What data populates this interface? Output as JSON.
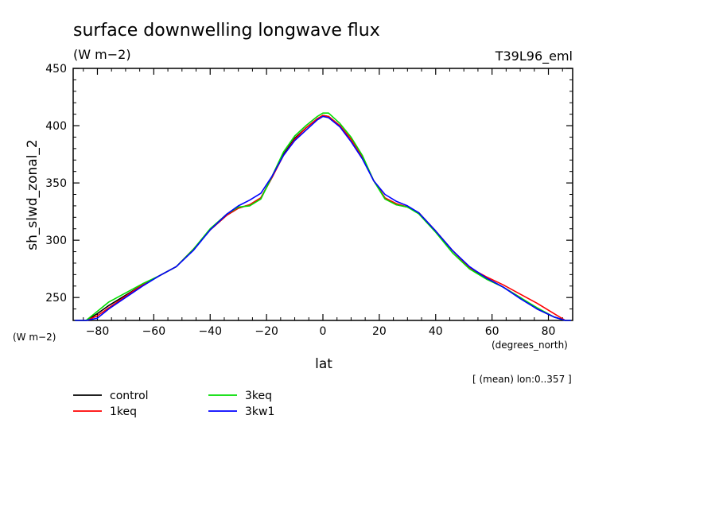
{
  "chart_data": {
    "type": "line",
    "title": "surface downwelling longwave flux",
    "subtitle": "(W m−2)",
    "run_label": "T39L96_eml",
    "ylabel": "sh_slwd_zonal_2",
    "y_units": "(W m−2)",
    "xlabel": "lat",
    "x_units": "(degrees_north)",
    "footnote": "[ (mean) lon:0..357 ]",
    "xlim": [
      -88.6,
      88.6
    ],
    "ylim": [
      230,
      450
    ],
    "x_ticks": [
      -80,
      -60,
      -40,
      -20,
      0,
      20,
      40,
      60,
      80
    ],
    "x_tick_labels": [
      "−80",
      "−60",
      "−40",
      "−20",
      "0",
      "20",
      "40",
      "60",
      "80"
    ],
    "y_ticks": [
      250,
      300,
      350,
      400,
      450
    ],
    "y_tick_labels": [
      "250",
      "300",
      "350",
      "400",
      "450"
    ],
    "grid": false,
    "legend_position": "bottom-left",
    "x": [
      -88,
      -84,
      -80,
      -76,
      -70,
      -64,
      -58,
      -52,
      -46,
      -40,
      -34,
      -30,
      -26,
      -22,
      -18,
      -14,
      -10,
      -6,
      -2,
      0,
      2,
      6,
      10,
      14,
      18,
      22,
      26,
      30,
      34,
      40,
      46,
      52,
      58,
      64,
      70,
      76,
      82,
      86,
      88
    ],
    "series": [
      {
        "name": "control",
        "color": "#000000",
        "values": [
          229,
          229,
          236,
          243,
          252,
          261,
          269,
          277,
          292,
          309,
          322,
          328,
          331,
          337,
          355,
          375,
          389,
          398,
          406,
          409,
          408,
          400,
          388,
          373,
          352,
          337,
          331,
          329,
          324,
          308,
          291,
          276,
          267,
          259,
          250,
          240,
          233,
          229,
          229
        ]
      },
      {
        "name": "1keq",
        "color": "#ff0000",
        "values": [
          229,
          229,
          234,
          241,
          251,
          261,
          269,
          277,
          292,
          309,
          322,
          328,
          331,
          337,
          355,
          374,
          388,
          398,
          406,
          409,
          408,
          400,
          388,
          373,
          352,
          337,
          332,
          329,
          324,
          308,
          291,
          276,
          268,
          261,
          253,
          245,
          236,
          230,
          230
        ]
      },
      {
        "name": "3keq",
        "color": "#00dd00",
        "values": [
          230,
          230,
          238,
          246,
          254,
          262,
          269,
          277,
          292,
          310,
          323,
          329,
          330,
          336,
          356,
          377,
          391,
          400,
          408,
          411,
          411,
          402,
          390,
          374,
          352,
          336,
          331,
          329,
          323,
          307,
          289,
          275,
          266,
          259,
          250,
          241,
          233,
          229,
          229
        ]
      },
      {
        "name": "3kw1",
        "color": "#0000ff",
        "values": [
          226,
          227,
          232,
          240,
          250,
          260,
          269,
          277,
          291,
          309,
          323,
          330,
          335,
          341,
          356,
          374,
          387,
          396,
          405,
          408,
          407,
          399,
          386,
          371,
          352,
          340,
          334,
          330,
          324,
          308,
          291,
          277,
          267,
          259,
          249,
          240,
          233,
          229,
          229
        ]
      }
    ]
  }
}
